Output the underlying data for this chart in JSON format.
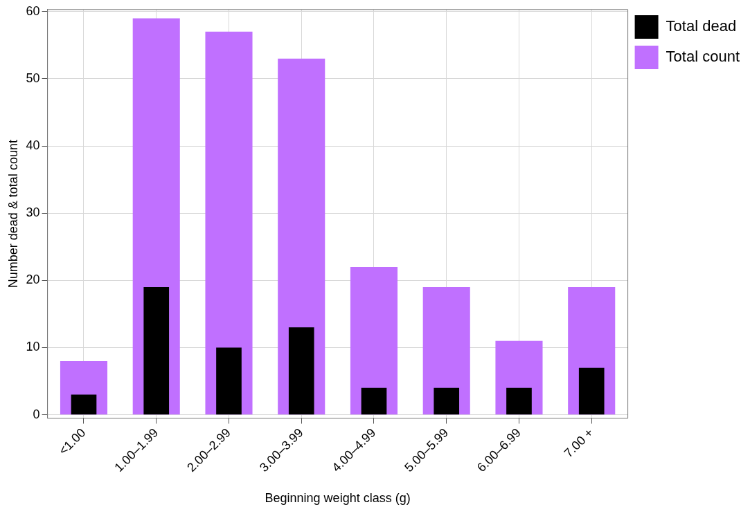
{
  "chart_data": {
    "type": "bar",
    "xlabel": "Beginning weight class (g)",
    "ylabel": "Number dead & total count",
    "categories": [
      "<1.00",
      "1.00–1.99",
      "2.00–2.99",
      "3.00–3.99",
      "4.00–4.99",
      "5.00–5.99",
      "6.00–6.99",
      "7.00 +"
    ],
    "series": [
      {
        "name": "Total dead",
        "color": "#000000",
        "values": [
          3,
          19,
          10,
          13,
          4,
          4,
          4,
          7
        ]
      },
      {
        "name": "Total count",
        "color": "#c070ff",
        "values": [
          8,
          59,
          57,
          53,
          22,
          19,
          11,
          19
        ]
      }
    ],
    "ylim": [
      -0.5,
      60.3
    ],
    "yticks": [
      0,
      10,
      20,
      30,
      40,
      50,
      60
    ],
    "grid": true,
    "legend": "top right"
  }
}
